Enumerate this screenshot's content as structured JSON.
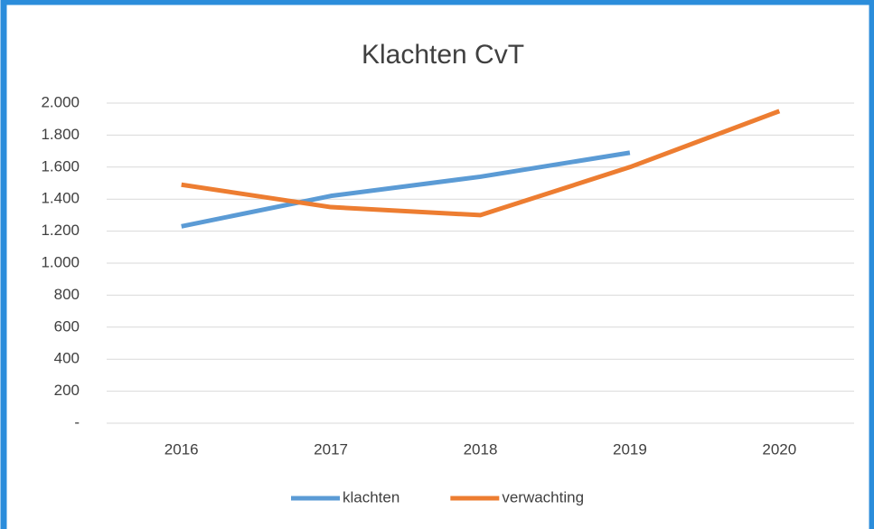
{
  "chart_data": {
    "type": "line",
    "title": "Klachten CvT",
    "categories": [
      "2016",
      "2017",
      "2018",
      "2019",
      "2020"
    ],
    "series": [
      {
        "name": "klachten",
        "color": "#5b9bd5",
        "values": [
          1230,
          1420,
          1540,
          1690,
          null
        ]
      },
      {
        "name": "verwachting",
        "color": "#ed7d31",
        "values": [
          1490,
          1350,
          1300,
          1600,
          1950
        ]
      }
    ],
    "ylim": [
      0,
      2000
    ],
    "yticks": [
      {
        "value": 0,
        "label": "-"
      },
      200,
      400,
      600,
      800,
      {
        "value": 1000,
        "label": "1.000"
      },
      {
        "value": 1200,
        "label": "1.200"
      },
      {
        "value": 1400,
        "label": "1.400"
      },
      {
        "value": 1600,
        "label": "1.600"
      },
      {
        "value": 1800,
        "label": "1.800"
      },
      {
        "value": 2000,
        "label": "2.000"
      }
    ],
    "grid": true,
    "legend": "bottom"
  }
}
